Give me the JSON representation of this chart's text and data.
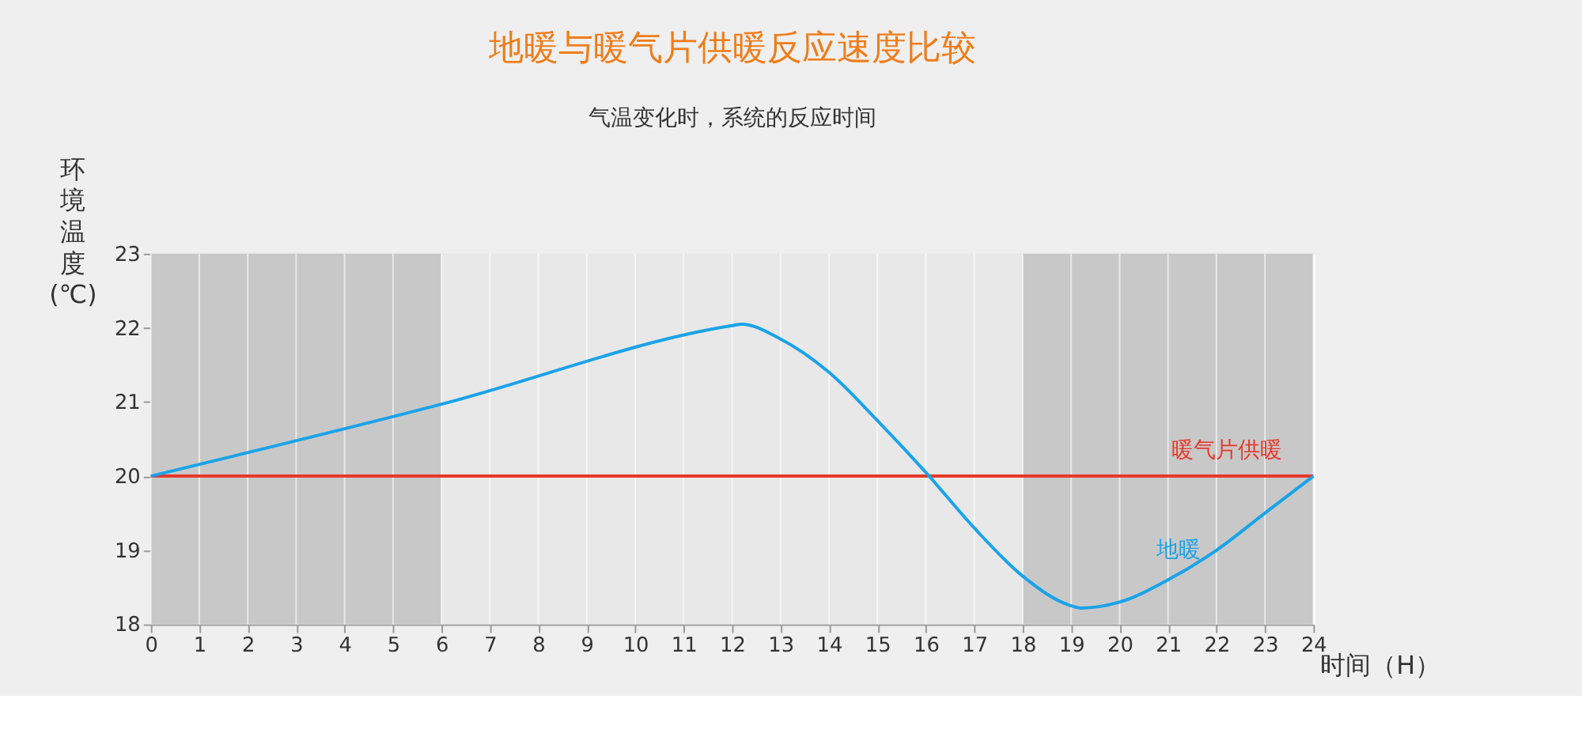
{
  "chart_data": {
    "type": "line",
    "title": "地暖与暖气片供暖反应速度比较",
    "subtitle": "气温变化时，系统的反应时间",
    "xlabel": "时间（H）",
    "ylabel": "环境温度(℃)",
    "xlim": [
      0,
      24
    ],
    "xticks": [
      0,
      1,
      2,
      3,
      4,
      5,
      6,
      7,
      8,
      9,
      10,
      11,
      12,
      13,
      14,
      15,
      16,
      17,
      18,
      19,
      20,
      21,
      22,
      23,
      24
    ],
    "ylim": [
      18,
      23
    ],
    "yticks": [
      18,
      19,
      20,
      21,
      22,
      23
    ],
    "grid": "x",
    "marker": "none",
    "line_style": "solid",
    "bands": [
      {
        "axis": "x",
        "from": 0,
        "to": 6,
        "color": "#c8c8c8"
      },
      {
        "axis": "x",
        "from": 18,
        "to": 24,
        "color": "#c8c8c8"
      }
    ],
    "series": [
      {
        "name": "暖气片供暖",
        "color": "#e8382a",
        "x": [
          0,
          24
        ],
        "values": [
          20,
          20
        ]
      },
      {
        "name": "地暖",
        "color": "#1aa3e8",
        "x": [
          0,
          6,
          12,
          12.2,
          13,
          14,
          15,
          16,
          17,
          18,
          19,
          19.2,
          20,
          21,
          22,
          23,
          24
        ],
        "values": [
          20,
          20.97,
          22.03,
          22.05,
          21.85,
          21.4,
          20.75,
          20.05,
          19.3,
          18.65,
          18.25,
          18.22,
          18.3,
          18.6,
          19.0,
          19.5,
          20
        ]
      }
    ]
  }
}
